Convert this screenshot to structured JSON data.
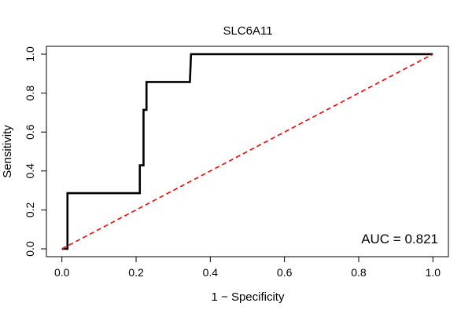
{
  "chart_data": {
    "type": "line",
    "title": "SLC6A11",
    "xlabel": "1 − Specificity",
    "ylabel": "Sensitivity",
    "xlim": [
      0,
      1
    ],
    "ylim": [
      0,
      1
    ],
    "x_ticks": [
      0.0,
      0.2,
      0.4,
      0.6,
      0.8,
      1.0
    ],
    "y_ticks": [
      0.0,
      0.2,
      0.4,
      0.6,
      0.8,
      1.0
    ],
    "x_tick_labels": [
      "0.0",
      "0.2",
      "0.4",
      "0.6",
      "0.8",
      "1.0"
    ],
    "y_tick_labels": [
      "0.0",
      "0.2",
      "0.4",
      "0.6",
      "0.8",
      "1.0"
    ],
    "grid": false,
    "series": [
      {
        "style": "solid",
        "color": "#000000",
        "x": [
          0.0,
          0.01,
          0.015,
          0.015,
          0.21,
          0.21,
          0.215,
          0.22,
          0.22,
          0.225,
          0.228,
          0.228,
          0.345,
          0.348,
          1.0
        ],
        "y": [
          0.0,
          0.0,
          0.0,
          0.286,
          0.286,
          0.429,
          0.429,
          0.429,
          0.714,
          0.714,
          0.714,
          0.857,
          0.857,
          1.0,
          1.0
        ]
      },
      {
        "style": "dashed",
        "color": "#ff0000",
        "x": [
          0.0,
          1.0
        ],
        "y": [
          0.0,
          1.0
        ]
      }
    ],
    "annotation": "AUC = 0.821"
  }
}
